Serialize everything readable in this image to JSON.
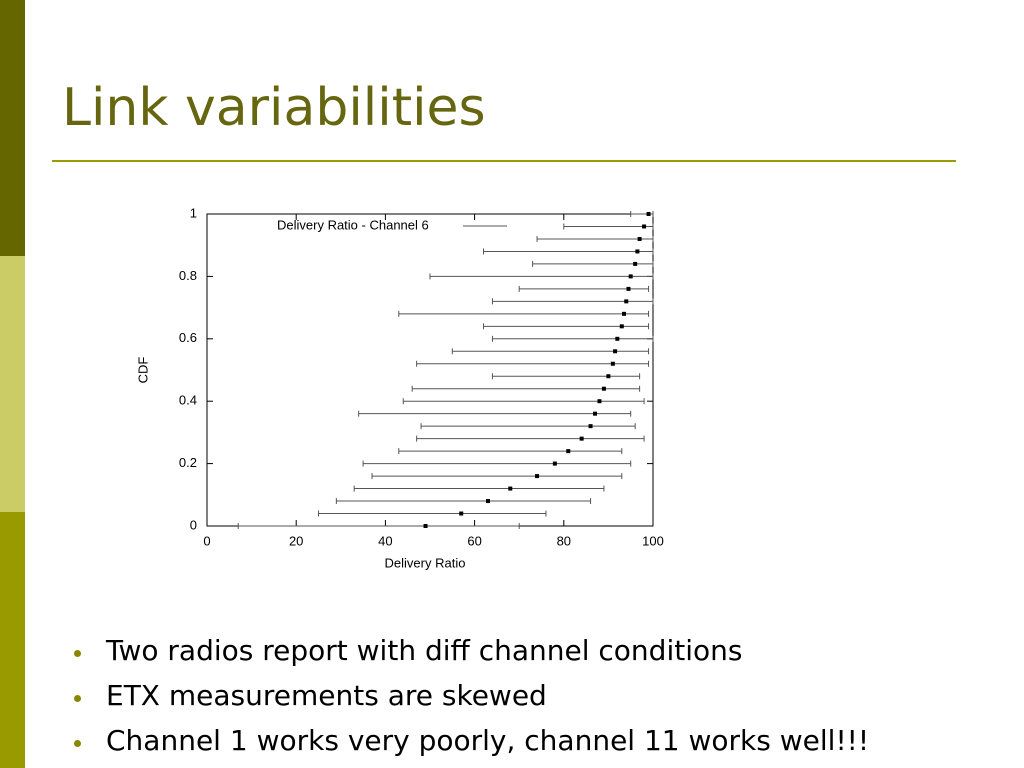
{
  "title": "Link variabilities",
  "bullets": [
    "Two radios report with diff channel conditions",
    "ETX measurements are skewed",
    "Channel 1 works very poorly, channel 11 works well!!!"
  ],
  "chart_data": {
    "type": "errorbar",
    "x_label": "Delivery Ratio",
    "y_label": "CDF",
    "xlim": [
      0,
      100
    ],
    "xticks": [
      0,
      20,
      40,
      60,
      80,
      100
    ],
    "ylim": [
      0,
      1
    ],
    "yticks": [
      0,
      0.2,
      0.4,
      0.6,
      0.8,
      1
    ],
    "legend": "top-left",
    "series": [
      {
        "name": "Delivery Ratio - Channel 6",
        "color": "#555555",
        "y": [
          0,
          0.04,
          0.08,
          0.12,
          0.16,
          0.2,
          0.24,
          0.28,
          0.32,
          0.36,
          0.4,
          0.44,
          0.48,
          0.52,
          0.56,
          0.6,
          0.64,
          0.68,
          0.72,
          0.76,
          0.8,
          0.84,
          0.88,
          0.92,
          0.96,
          1
        ],
        "x": [
          49,
          57,
          63,
          68,
          74,
          78,
          81,
          84,
          86,
          87,
          88,
          89,
          90,
          91,
          91.5,
          92,
          93,
          93.5,
          94,
          94.5,
          95,
          96,
          96.5,
          97,
          98,
          99
        ],
        "xmin": [
          7,
          25,
          29,
          33,
          37,
          35,
          43,
          47,
          48,
          34,
          44,
          46,
          64,
          47,
          55,
          64,
          62,
          43,
          64,
          70,
          50,
          73,
          62,
          74,
          80,
          95
        ],
        "xmax": [
          70,
          76,
          86,
          89,
          93,
          95,
          93,
          98,
          96,
          95,
          98,
          97,
          97,
          99,
          99,
          100,
          99,
          99,
          100,
          99,
          100,
          100,
          100,
          100,
          100,
          100
        ]
      }
    ]
  }
}
